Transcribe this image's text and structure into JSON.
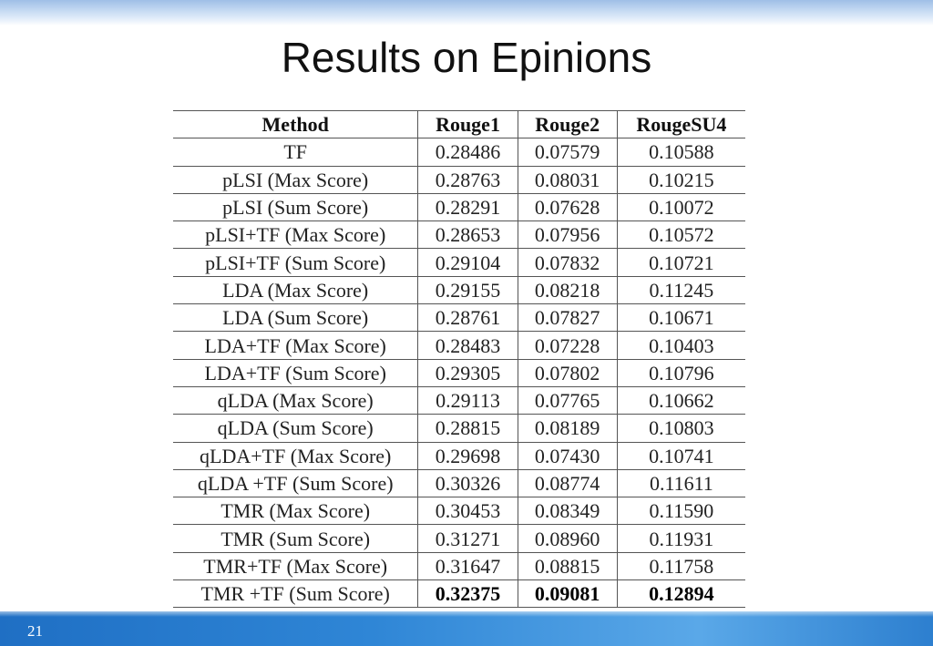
{
  "slide": {
    "title": "Results on Epinions",
    "number": "21"
  },
  "table": {
    "headers": [
      "Method",
      "Rouge1",
      "Rouge2",
      "RougeSU4"
    ],
    "rows": [
      {
        "method": "TF",
        "rouge1": "0.28486",
        "rouge2": "0.07579",
        "rougesu4": "0.10588"
      },
      {
        "method": "pLSI (Max Score)",
        "rouge1": "0.28763",
        "rouge2": "0.08031",
        "rougesu4": "0.10215"
      },
      {
        "method": "pLSI (Sum Score)",
        "rouge1": "0.28291",
        "rouge2": "0.07628",
        "rougesu4": "0.10072"
      },
      {
        "method": "pLSI+TF (Max Score)",
        "rouge1": "0.28653",
        "rouge2": "0.07956",
        "rougesu4": "0.10572"
      },
      {
        "method": "pLSI+TF (Sum Score)",
        "rouge1": "0.29104",
        "rouge2": "0.07832",
        "rougesu4": "0.10721"
      },
      {
        "method": "LDA (Max Score)",
        "rouge1": "0.29155",
        "rouge2": "0.08218",
        "rougesu4": "0.11245"
      },
      {
        "method": "LDA (Sum Score)",
        "rouge1": "0.28761",
        "rouge2": "0.07827",
        "rougesu4": "0.10671"
      },
      {
        "method": "LDA+TF (Max Score)",
        "rouge1": "0.28483",
        "rouge2": "0.07228",
        "rougesu4": "0.10403"
      },
      {
        "method": "LDA+TF (Sum Score)",
        "rouge1": "0.29305",
        "rouge2": "0.07802",
        "rougesu4": "0.10796"
      },
      {
        "method": "qLDA (Max Score)",
        "rouge1": "0.29113",
        "rouge2": "0.07765",
        "rougesu4": "0.10662"
      },
      {
        "method": "qLDA (Sum Score)",
        "rouge1": "0.28815",
        "rouge2": "0.08189",
        "rougesu4": "0.10803"
      },
      {
        "method": "qLDA+TF (Max Score)",
        "rouge1": "0.29698",
        "rouge2": "0.07430",
        "rougesu4": "0.10741"
      },
      {
        "method": "qLDA +TF (Sum Score)",
        "rouge1": "0.30326",
        "rouge2": "0.08774",
        "rougesu4": "0.11611"
      },
      {
        "method": "TMR (Max Score)",
        "rouge1": "0.30453",
        "rouge2": "0.08349",
        "rougesu4": "0.11590"
      },
      {
        "method": "TMR (Sum Score)",
        "rouge1": "0.31271",
        "rouge2": "0.08960",
        "rougesu4": "0.11931"
      },
      {
        "method": "TMR+TF (Max Score)",
        "rouge1": "0.31647",
        "rouge2": "0.08815",
        "rougesu4": "0.11758"
      },
      {
        "method": "TMR +TF (Sum Score)",
        "rouge1": "0.32375",
        "rouge2": "0.09081",
        "rougesu4": "0.12894",
        "best": true
      }
    ]
  },
  "colors": {
    "top_band": "#c8dcf3",
    "bottom_band": "#2f86d6",
    "text": "#222222"
  }
}
